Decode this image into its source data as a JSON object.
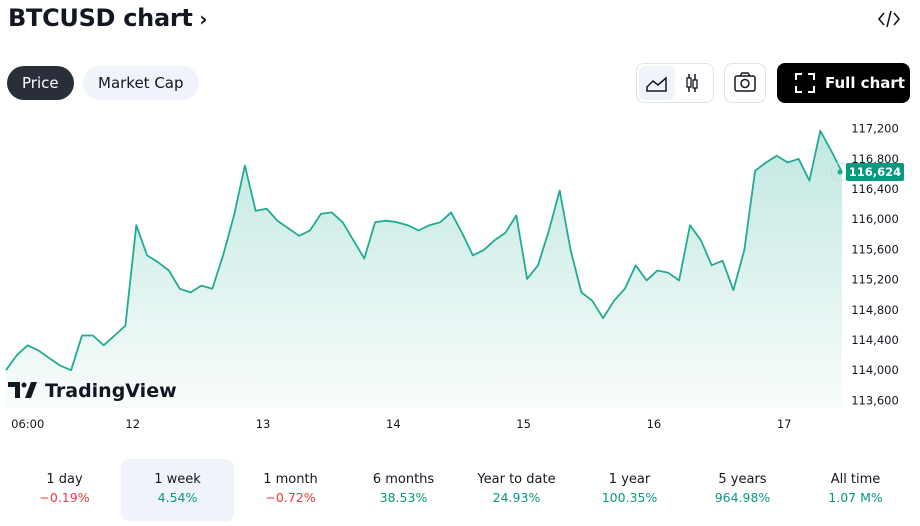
{
  "header": {
    "title": "BTCUSD chart"
  },
  "tabs": [
    {
      "label": "Price",
      "selected": true
    },
    {
      "label": "Market Cap",
      "selected": false
    }
  ],
  "full_chart": "Full chart",
  "logo": "TradingView",
  "chart_data": {
    "type": "area",
    "color": "#22ab94",
    "x": [
      -4,
      -2,
      0,
      2,
      4,
      6,
      8,
      10,
      12,
      14,
      16,
      18,
      20,
      22,
      24,
      26,
      28,
      30,
      32,
      34,
      36,
      38,
      40,
      42,
      44,
      46,
      48,
      50,
      52,
      54,
      56,
      58,
      60,
      62,
      64,
      66,
      68,
      70,
      72,
      74,
      76,
      78,
      80,
      82,
      84,
      86,
      88,
      90,
      92,
      94,
      96,
      98,
      100,
      102,
      104,
      106,
      108,
      110,
      112,
      114,
      116,
      118,
      120,
      122,
      124,
      126,
      128,
      130,
      132,
      134,
      136,
      138,
      140,
      142,
      144,
      146,
      148,
      150
    ],
    "values": [
      114000,
      114200,
      114330,
      114260,
      114160,
      114060,
      114000,
      114460,
      114460,
      114330,
      114460,
      114590,
      115920,
      115520,
      115430,
      115320,
      115080,
      115030,
      115120,
      115080,
      115520,
      116050,
      116710,
      116110,
      116140,
      115980,
      115880,
      115780,
      115850,
      116070,
      116090,
      115960,
      115720,
      115480,
      115960,
      115980,
      115960,
      115920,
      115850,
      115920,
      115960,
      116090,
      115820,
      115520,
      115590,
      115720,
      115820,
      116050,
      115210,
      115390,
      115850,
      116380,
      115590,
      115030,
      114920,
      114690,
      114920,
      115080,
      115390,
      115190,
      115320,
      115290,
      115190,
      115920,
      115720,
      115390,
      115450,
      115060,
      115590,
      116640,
      116750,
      116840,
      116750,
      116800,
      116510,
      117170,
      116910,
      116624
    ],
    "xlim": [
      -4,
      150
    ],
    "xticks": [
      {
        "value": 0,
        "label": "06:00"
      },
      {
        "value": 18,
        "label": "12"
      },
      {
        "value": 42,
        "label": "13"
      },
      {
        "value": 66,
        "label": "14"
      },
      {
        "value": 90,
        "label": "15"
      },
      {
        "value": 114,
        "label": "16"
      },
      {
        "value": 138,
        "label": "17"
      }
    ],
    "ylim": [
      113500,
      117300
    ],
    "yticks": [
      {
        "value": 113600,
        "label": "113,600"
      },
      {
        "value": 114000,
        "label": "114,000"
      },
      {
        "value": 114400,
        "label": "114,400"
      },
      {
        "value": 114800,
        "label": "114,800"
      },
      {
        "value": 115200,
        "label": "115,200"
      },
      {
        "value": 115600,
        "label": "115,600"
      },
      {
        "value": 116000,
        "label": "116,000"
      },
      {
        "value": 116400,
        "label": "116,400"
      },
      {
        "value": 116800,
        "label": "116,800"
      },
      {
        "value": 117200,
        "label": "117,200"
      }
    ],
    "last_price": {
      "value": 116624,
      "label": "116,624"
    }
  },
  "periods": [
    {
      "label": "1 day",
      "change": "−0.19%"
    },
    {
      "label": "1 week",
      "change": "4.54%",
      "selected": true
    },
    {
      "label": "1 month",
      "change": "−0.72%"
    },
    {
      "label": "6 months",
      "change": "38.53%"
    },
    {
      "label": "Year to date",
      "change": "24.93%"
    },
    {
      "label": "1 year",
      "change": "100.35%"
    },
    {
      "label": "5 years",
      "change": "964.98%"
    },
    {
      "label": "All time",
      "change": "1.07 M%"
    }
  ]
}
